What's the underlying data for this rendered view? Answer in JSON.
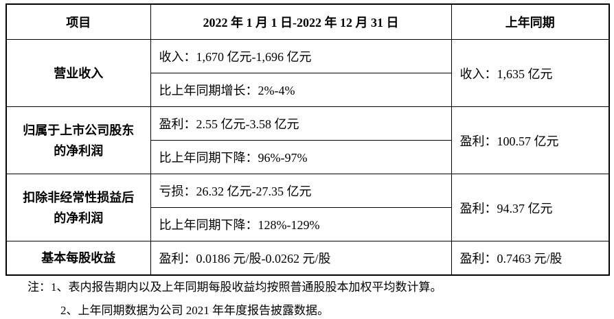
{
  "table": {
    "header": [
      "项目",
      "2022 年 1 月 1 日-2022 年 12 月 31 日",
      "上年同期"
    ],
    "rows": [
      {
        "item": "营业收入",
        "current": [
          "收入：1,670 亿元-1,696 亿元",
          "比上年同期增长：2%-4%"
        ],
        "prior": "收入：1,635 亿元"
      },
      {
        "item": "归属于上市公司股东的净利润",
        "current": [
          "盈利：2.55 亿元-3.58 亿元",
          "比上年同期下降：96%-97%"
        ],
        "prior": "盈利：100.57 亿元"
      },
      {
        "item": "扣除非经常性损益后的净利润",
        "current": [
          "亏损：26.32 亿元-27.35 亿元",
          "比上年同期下降：128%-129%"
        ],
        "prior": "盈利：94.37 亿元"
      },
      {
        "item": "基本每股收益",
        "current": [
          "盈利：0.0186 元/股-0.0262 元/股"
        ],
        "prior": "盈利：0.7463 元/股"
      }
    ]
  },
  "notes": [
    "注：1、表内报告期内以及上年同期每股收益均按照普通股股本加权平均数计算。",
    "2、上年同期数据为公司 2021 年年度报告披露数据。"
  ]
}
